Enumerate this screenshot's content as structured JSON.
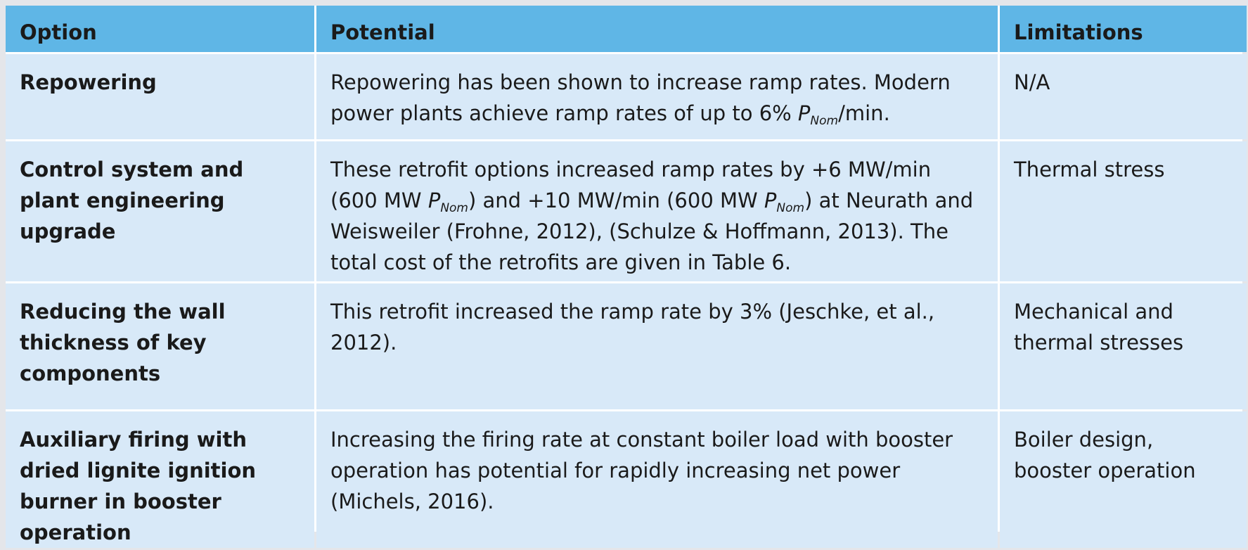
{
  "table": {
    "headers": {
      "option": "Option",
      "potential": "Potential",
      "limitations": "Limitations"
    },
    "rows": [
      {
        "option": "Repowering",
        "potential_before": "Repowering has been shown to increase ramp rates. Modern power plants achieve ramp rates of up to 6% ",
        "p": "P",
        "nom": "Nom",
        "potential_after": "/min.",
        "limitations": "N/A"
      },
      {
        "option": "Control system and plant engineering upgrade",
        "potential_a": "These retrofit options increased ramp rates by +6 MW/min (600 MW ",
        "p1": "P",
        "nom1": "Nom",
        "potential_b": ") and +10 MW/min (600 MW ",
        "p2": "P",
        "nom2": "Nom",
        "potential_c": ") at Neurath and Weisweiler (Frohne, 2012), (Schulze & Hoffmann, 2013). The total cost of the retrofits are given in Table 6.",
        "limitations": "Thermal stress"
      },
      {
        "option": "Reducing the wall thickness of key components",
        "potential": "This retrofit increased the ramp rate by 3% (Jeschke, et al., 2012).",
        "limitations": "Mechanical and thermal stresses"
      },
      {
        "option": "Auxiliary firing with dried lignite ignition burner in booster operation",
        "potential": "Increasing the firing rate at constant boiler load with booster operation has potential for rapidly increasing net power (Michels, 2016).",
        "limitations": "Boiler design, booster operation"
      }
    ]
  },
  "colors": {
    "header_bg": "#5fb6e6",
    "cell_bg": "#d8e9f8",
    "page_bg": "#e4e6ea"
  }
}
